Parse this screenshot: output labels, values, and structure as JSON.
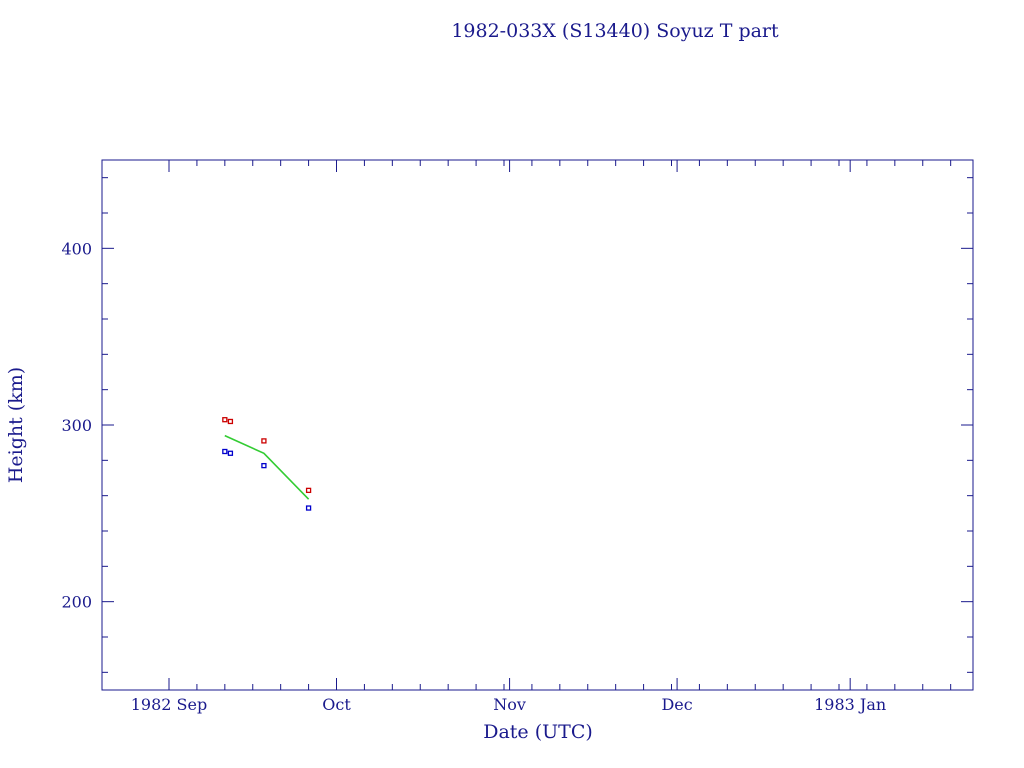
{
  "chart_data": {
    "type": "scatter",
    "title": "1982-033X (S13440) Soyuz T part",
    "xlabel": "Date (UTC)",
    "ylabel": "Height (km)",
    "xlim": [
      "1982-08-20",
      "1983-01-23"
    ],
    "ylim": [
      150,
      450
    ],
    "x_ticks": [
      {
        "date": "1982-09-01",
        "label": "1982 Sep"
      },
      {
        "date": "1982-10-01",
        "label": "Oct"
      },
      {
        "date": "1982-11-01",
        "label": "Nov"
      },
      {
        "date": "1982-12-01",
        "label": "Dec"
      },
      {
        "date": "1983-01-01",
        "label": "1983 Jan"
      }
    ],
    "y_ticks": [
      200,
      300,
      400
    ],
    "grid": false,
    "series": [
      {
        "role": "apogee",
        "color": "#cc0000",
        "marker": "square",
        "points": [
          {
            "x": "1982-09-11",
            "y": 303
          },
          {
            "x": "1982-09-12",
            "y": 302
          },
          {
            "x": "1982-09-18",
            "y": 291
          },
          {
            "x": "1982-09-26",
            "y": 263
          }
        ]
      },
      {
        "role": "perigee",
        "color": "#0000cc",
        "marker": "square",
        "points": [
          {
            "x": "1982-09-11",
            "y": 285
          },
          {
            "x": "1982-09-12",
            "y": 284
          },
          {
            "x": "1982-09-18",
            "y": 277
          },
          {
            "x": "1982-09-26",
            "y": 253
          }
        ]
      },
      {
        "role": "mean",
        "color": "#33cc33",
        "marker": "line",
        "points": [
          {
            "x": "1982-09-11",
            "y": 294
          },
          {
            "x": "1982-09-18",
            "y": 284
          },
          {
            "x": "1982-09-26",
            "y": 258
          }
        ]
      }
    ]
  }
}
